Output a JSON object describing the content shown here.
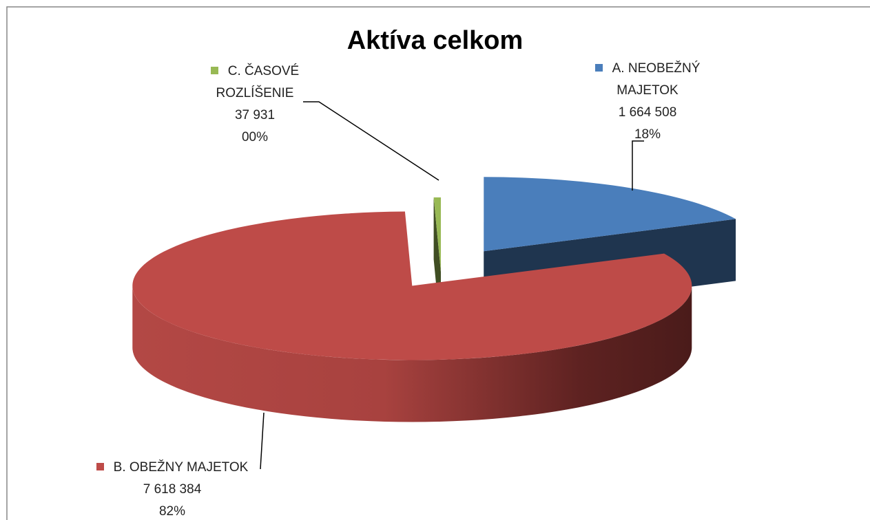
{
  "chart_data": {
    "type": "pie3d",
    "title": "Aktíva celkom",
    "categories": [
      "A. NEOBEŽNÝ MAJETOK",
      "B. OBEŽNY MAJETOK",
      "C. ČASOVÉ ROZLÍŠENIE"
    ],
    "values": [
      1664508,
      7618384,
      37931
    ],
    "value_labels": [
      "1 664 508",
      "7 618 384",
      "37 931"
    ],
    "percent_labels": [
      "18%",
      "82%",
      "00%"
    ],
    "colors": [
      "#4a7ebb",
      "#be4b48",
      "#98b954"
    ]
  }
}
